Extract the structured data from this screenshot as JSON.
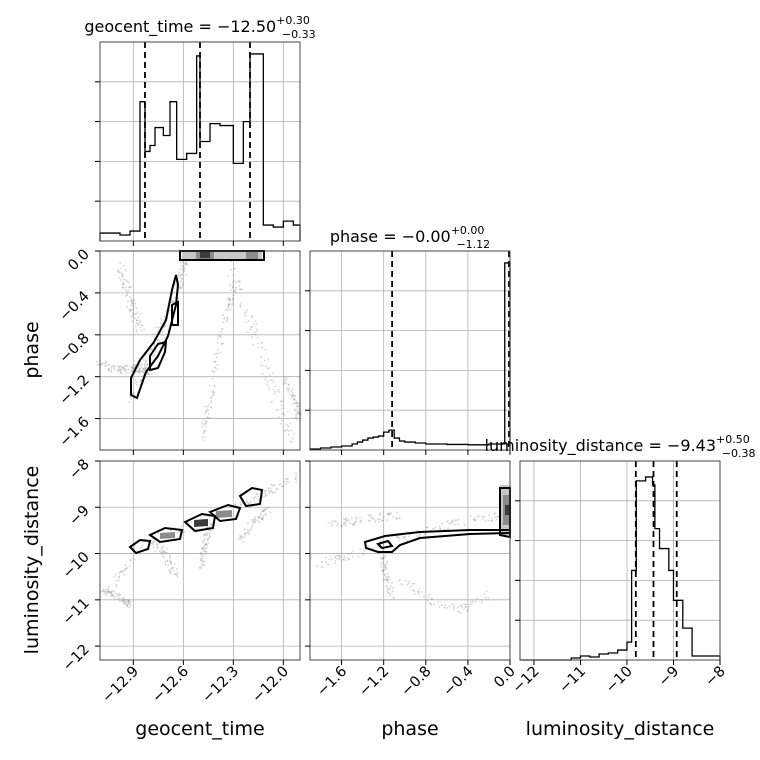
{
  "chart_data": {
    "type": "corner",
    "parameters": [
      "geocent_time",
      "phase",
      "luminosity_distance"
    ],
    "titles": [
      {
        "text": "geocent_time = −12.50",
        "sup": "+0.30",
        "sub": "−0.33"
      },
      {
        "text": "phase = −0.00",
        "sup": "+0.00",
        "sub": "−1.12"
      },
      {
        "text": "luminosity_distance = −9.43",
        "sup": "+0.50",
        "sub": "−0.38"
      }
    ],
    "ranges": {
      "geocent_time": [
        -13.1,
        -11.9
      ],
      "phase": [
        -1.9,
        0.0
      ],
      "luminosity_distance": [
        -12.3,
        -8.0
      ]
    },
    "ticks": {
      "geocent_time": {
        "values": [
          -12.9,
          -12.6,
          -12.3,
          -12.0
        ],
        "labels": [
          "−12.9",
          "−12.6",
          "−12.3",
          "−12.0"
        ]
      },
      "phase_y": {
        "values": [
          0.0,
          -0.4,
          -0.8,
          -1.2,
          -1.6
        ],
        "labels": [
          "0.0",
          "−0.4",
          "−0.8",
          "−1.2",
          "−1.6"
        ]
      },
      "phase_x": {
        "values": [
          -1.6,
          -1.2,
          -0.8,
          -0.4,
          0.0
        ],
        "labels": [
          "−1.6",
          "−1.2",
          "−0.8",
          "−0.4",
          "0.0"
        ]
      },
      "luminosity_distance_y": {
        "values": [
          -8,
          -9,
          -10,
          -11,
          -12
        ],
        "labels": [
          "−8",
          "−9",
          "−10",
          "−11",
          "−12"
        ]
      },
      "luminosity_distance_x": {
        "values": [
          -12,
          -11,
          -10,
          -9,
          -8
        ],
        "labels": [
          "−12",
          "−11",
          "−10",
          "−9",
          "−8"
        ]
      }
    },
    "quantiles": {
      "geocent_time": [
        -12.83,
        -12.5,
        -12.2
      ],
      "phase": [
        -1.12,
        0.0
      ],
      "luminosity_distance": [
        -9.81,
        -9.43,
        -8.93
      ]
    },
    "histograms": {
      "geocent_time": {
        "edges": [
          -13.1,
          -12.98,
          -12.92,
          -12.86,
          -12.83,
          -12.8,
          -12.77,
          -12.72,
          -12.68,
          -12.64,
          -12.58,
          -12.52,
          -12.5,
          -12.44,
          -12.38,
          -12.3,
          -12.24,
          -12.2,
          -12.18,
          -12.12,
          -12.06,
          -12.0,
          -11.94,
          -11.9
        ],
        "counts": [
          0.04,
          0.03,
          0.05,
          0.7,
          0.45,
          0.48,
          0.57,
          0.53,
          0.7,
          0.41,
          0.44,
          0.93,
          0.5,
          0.59,
          0.58,
          0.39,
          0.6,
          0.94,
          0.94,
          0.08,
          0.07,
          0.1,
          0.08
        ]
      },
      "phase": {
        "edges": [
          -1.9,
          -1.8,
          -1.7,
          -1.6,
          -1.5,
          -1.45,
          -1.4,
          -1.35,
          -1.3,
          -1.25,
          -1.2,
          -1.15,
          -1.1,
          -1.05,
          -1.0,
          -0.9,
          -0.8,
          -0.6,
          -0.4,
          -0.2,
          -0.05,
          0.0
        ],
        "counts": [
          0.005,
          0.01,
          0.015,
          0.02,
          0.03,
          0.04,
          0.05,
          0.06,
          0.065,
          0.07,
          0.09,
          0.1,
          0.06,
          0.045,
          0.04,
          0.035,
          0.03,
          0.028,
          0.026,
          0.03,
          0.94
        ]
      },
      "luminosity_distance": {
        "edges": [
          -12.3,
          -11.2,
          -11.0,
          -10.8,
          -10.6,
          -10.4,
          -10.2,
          -10.0,
          -9.9,
          -9.8,
          -9.6,
          -9.45,
          -9.4,
          -9.3,
          -9.1,
          -9.0,
          -8.8,
          -8.6,
          -8.4,
          -8.0
        ],
        "counts": [
          0.0,
          0.01,
          0.02,
          0.015,
          0.03,
          0.035,
          0.05,
          0.09,
          0.45,
          0.9,
          0.92,
          0.88,
          0.66,
          0.56,
          0.45,
          0.3,
          0.16,
          0.02,
          0.02
        ]
      }
    }
  }
}
